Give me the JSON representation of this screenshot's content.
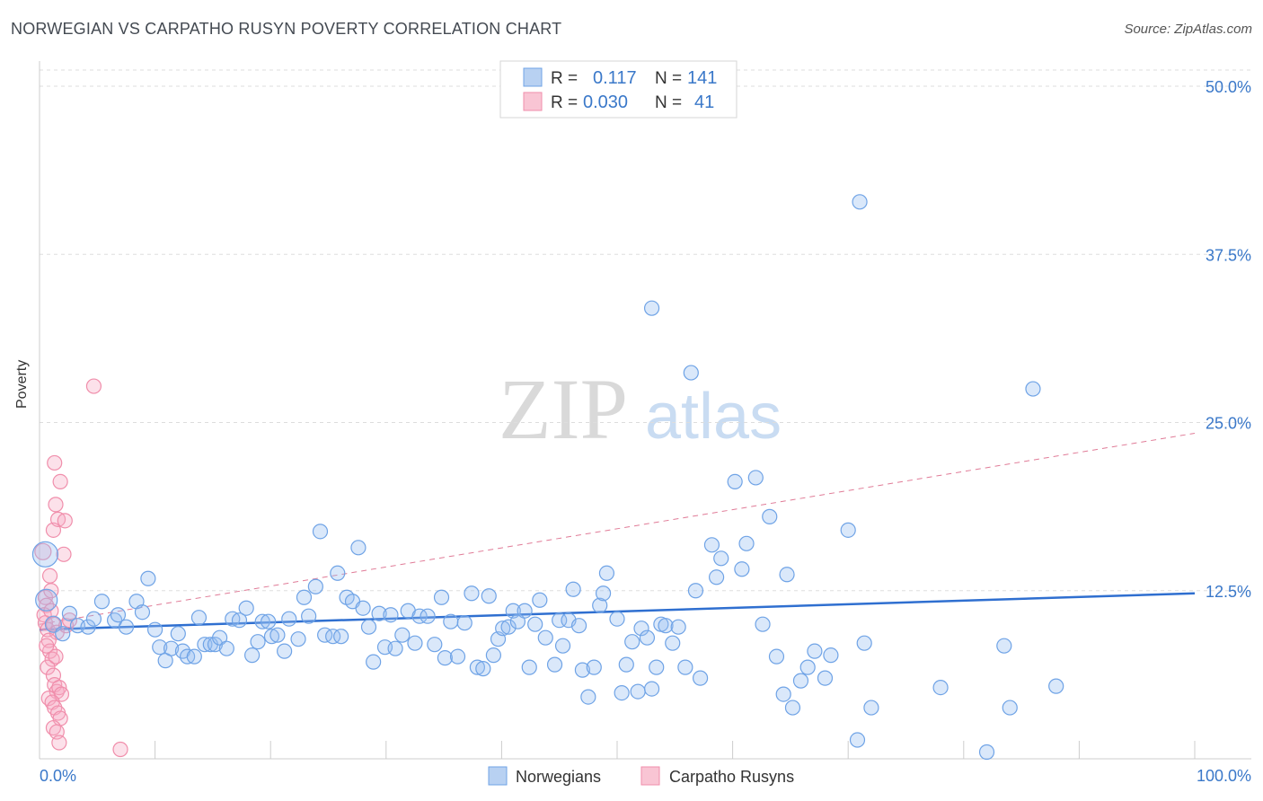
{
  "title": "NORWEGIAN VS CARPATHO RUSYN POVERTY CORRELATION CHART",
  "source": "Source: ZipAtlas.com",
  "watermark": {
    "zip": "ZIP",
    "atlas": "atlas"
  },
  "colors": {
    "blue": "#6fa3e6",
    "blue_line": "#2f6fd0",
    "pink": "#f08eab",
    "pink_line": "#e07b97",
    "axis_text": "#3a78c9",
    "grid": "#d8d8d8"
  },
  "legend": {
    "r_label": "R =",
    "n_label": "N =",
    "rows": [
      {
        "name": "Norwegians",
        "r": "0.117",
        "n": "141"
      },
      {
        "name": "Carpatho Rusyns",
        "r": "0.030",
        "n": "41"
      }
    ]
  },
  "chart_data": {
    "type": "scatter",
    "title": "NORWEGIAN VS CARPATHO RUSYN POVERTY CORRELATION CHART",
    "xlabel": "",
    "ylabel": "Poverty",
    "xlim": [
      0,
      100
    ],
    "ylim": [
      0,
      50
    ],
    "x_tick_labels": [
      "0.0%",
      "100.0%"
    ],
    "y_ticks": [
      12.5,
      25.0,
      37.5,
      50.0
    ],
    "y_tick_labels": [
      "12.5%",
      "25.0%",
      "37.5%",
      "50.0%"
    ],
    "series": [
      {
        "name": "Norwegians",
        "color": "#6fa3e6",
        "trend": {
          "x": [
            0,
            100
          ],
          "y": [
            9.6,
            12.3
          ],
          "style": "solid"
        },
        "points": [
          [
            0.5,
            15.2,
            14
          ],
          [
            0.6,
            11.8,
            12
          ],
          [
            1.2,
            10.0,
            9
          ],
          [
            2.0,
            9.3,
            8
          ],
          [
            2.6,
            10.8,
            8
          ],
          [
            3.3,
            9.9,
            8
          ],
          [
            4.2,
            9.8,
            8
          ],
          [
            4.7,
            10.4,
            8
          ],
          [
            5.4,
            11.7,
            8
          ],
          [
            6.5,
            10.3,
            8
          ],
          [
            6.8,
            10.7,
            8
          ],
          [
            7.5,
            9.8,
            8
          ],
          [
            8.4,
            11.7,
            8
          ],
          [
            8.9,
            10.9,
            8
          ],
          [
            9.4,
            13.4,
            8
          ],
          [
            10.0,
            9.6,
            8
          ],
          [
            10.4,
            8.3,
            8
          ],
          [
            10.9,
            7.3,
            8
          ],
          [
            11.4,
            8.2,
            8
          ],
          [
            12.0,
            9.3,
            8
          ],
          [
            12.4,
            8.0,
            8
          ],
          [
            12.8,
            7.6,
            8
          ],
          [
            13.4,
            7.6,
            8
          ],
          [
            13.8,
            10.5,
            8
          ],
          [
            14.3,
            8.5,
            8
          ],
          [
            14.8,
            8.5,
            8
          ],
          [
            15.2,
            8.5,
            8
          ],
          [
            15.6,
            9.0,
            8
          ],
          [
            16.2,
            8.2,
            8
          ],
          [
            16.7,
            10.4,
            8
          ],
          [
            17.3,
            10.3,
            8
          ],
          [
            17.9,
            11.2,
            8
          ],
          [
            18.4,
            7.7,
            8
          ],
          [
            18.9,
            8.7,
            8
          ],
          [
            19.3,
            10.2,
            8
          ],
          [
            19.8,
            10.2,
            8
          ],
          [
            20.1,
            9.1,
            8
          ],
          [
            20.6,
            9.2,
            8
          ],
          [
            21.2,
            8.0,
            8
          ],
          [
            21.6,
            10.4,
            8
          ],
          [
            22.4,
            8.9,
            8
          ],
          [
            22.9,
            12.0,
            8
          ],
          [
            23.3,
            10.6,
            8
          ],
          [
            23.9,
            12.8,
            8
          ],
          [
            24.3,
            16.9,
            8
          ],
          [
            24.7,
            9.2,
            8
          ],
          [
            25.4,
            9.1,
            8
          ],
          [
            25.8,
            13.8,
            8
          ],
          [
            26.1,
            9.1,
            8
          ],
          [
            26.6,
            12.0,
            8
          ],
          [
            27.1,
            11.7,
            8
          ],
          [
            27.6,
            15.7,
            8
          ],
          [
            28.0,
            11.2,
            8
          ],
          [
            28.5,
            9.8,
            8
          ],
          [
            28.9,
            7.2,
            8
          ],
          [
            29.4,
            10.8,
            8
          ],
          [
            29.9,
            8.3,
            8
          ],
          [
            30.4,
            10.7,
            8
          ],
          [
            30.8,
            8.2,
            8
          ],
          [
            31.4,
            9.2,
            8
          ],
          [
            31.9,
            11.0,
            8
          ],
          [
            32.5,
            8.6,
            8
          ],
          [
            32.9,
            10.6,
            8
          ],
          [
            33.6,
            10.6,
            8
          ],
          [
            34.2,
            8.5,
            8
          ],
          [
            34.8,
            12.0,
            8
          ],
          [
            35.1,
            7.5,
            8
          ],
          [
            35.6,
            10.2,
            8
          ],
          [
            36.2,
            7.6,
            8
          ],
          [
            36.8,
            10.1,
            8
          ],
          [
            37.4,
            12.3,
            8
          ],
          [
            37.9,
            6.8,
            8
          ],
          [
            38.4,
            6.7,
            8
          ],
          [
            38.9,
            12.1,
            8
          ],
          [
            39.3,
            7.7,
            8
          ],
          [
            39.7,
            8.9,
            8
          ],
          [
            40.1,
            9.7,
            8
          ],
          [
            40.6,
            9.8,
            8
          ],
          [
            41.0,
            11.0,
            8
          ],
          [
            41.4,
            10.2,
            8
          ],
          [
            42.0,
            11.0,
            8
          ],
          [
            42.4,
            6.8,
            8
          ],
          [
            42.9,
            10.0,
            8
          ],
          [
            43.3,
            11.8,
            8
          ],
          [
            43.8,
            9.0,
            8
          ],
          [
            44.6,
            7.0,
            8
          ],
          [
            45.0,
            10.3,
            8
          ],
          [
            45.3,
            8.4,
            8
          ],
          [
            45.8,
            10.3,
            8
          ],
          [
            46.2,
            12.6,
            8
          ],
          [
            46.7,
            9.9,
            8
          ],
          [
            47.0,
            6.6,
            8
          ],
          [
            47.5,
            4.6,
            8
          ],
          [
            48.0,
            6.8,
            8
          ],
          [
            48.5,
            11.4,
            8
          ],
          [
            48.8,
            12.3,
            8
          ],
          [
            49.1,
            13.8,
            8
          ],
          [
            50.0,
            10.4,
            8
          ],
          [
            50.4,
            4.9,
            8
          ],
          [
            50.8,
            7.0,
            8
          ],
          [
            51.3,
            8.7,
            8
          ],
          [
            51.8,
            5.0,
            8
          ],
          [
            52.1,
            9.7,
            8
          ],
          [
            52.6,
            9.0,
            8
          ],
          [
            53.0,
            5.2,
            8
          ],
          [
            53.4,
            6.8,
            8
          ],
          [
            53.8,
            10.0,
            8
          ],
          [
            54.2,
            9.9,
            8
          ],
          [
            54.8,
            8.6,
            8
          ],
          [
            55.3,
            9.8,
            8
          ],
          [
            55.9,
            6.8,
            8
          ],
          [
            56.4,
            28.7,
            8
          ],
          [
            56.8,
            12.5,
            8
          ],
          [
            57.2,
            6.0,
            8
          ],
          [
            58.2,
            15.9,
            8
          ],
          [
            58.6,
            13.5,
            8
          ],
          [
            59.0,
            14.9,
            8
          ],
          [
            60.2,
            20.6,
            8
          ],
          [
            60.8,
            14.1,
            8
          ],
          [
            61.2,
            16.0,
            8
          ],
          [
            62.0,
            20.9,
            8
          ],
          [
            62.6,
            10.0,
            8
          ],
          [
            63.2,
            18.0,
            8
          ],
          [
            63.8,
            7.6,
            8
          ],
          [
            64.4,
            4.8,
            8
          ],
          [
            64.7,
            13.7,
            8
          ],
          [
            65.2,
            3.8,
            8
          ],
          [
            65.9,
            5.8,
            8
          ],
          [
            66.5,
            6.8,
            8
          ],
          [
            67.1,
            8.0,
            8
          ],
          [
            68.0,
            6.0,
            8
          ],
          [
            68.5,
            7.7,
            8
          ],
          [
            70.0,
            17.0,
            8
          ],
          [
            70.8,
            1.4,
            8
          ],
          [
            71.4,
            8.6,
            8
          ],
          [
            71.0,
            41.4,
            8
          ],
          [
            78.0,
            5.3,
            8
          ],
          [
            82.0,
            0.5,
            8
          ],
          [
            83.5,
            8.4,
            8
          ],
          [
            86.0,
            27.5,
            8
          ],
          [
            88.0,
            5.4,
            8
          ],
          [
            84.0,
            3.8,
            8
          ],
          [
            53.0,
            33.5,
            8
          ],
          [
            72.0,
            3.8,
            8
          ]
        ]
      },
      {
        "name": "Carpatho Rusyns",
        "color": "#f08eab",
        "trend": {
          "x": [
            0,
            100
          ],
          "y": [
            10.0,
            24.2
          ],
          "style": "dashed"
        },
        "points": [
          [
            0.3,
            15.4,
            9
          ],
          [
            0.5,
            12.0,
            8
          ],
          [
            0.6,
            11.4,
            8
          ],
          [
            0.4,
            10.7,
            8
          ],
          [
            0.5,
            10.1,
            8
          ],
          [
            0.7,
            9.6,
            8
          ],
          [
            0.9,
            13.6,
            8
          ],
          [
            1.0,
            12.5,
            8
          ],
          [
            1.2,
            17.0,
            8
          ],
          [
            1.4,
            18.9,
            8
          ],
          [
            1.6,
            17.8,
            8
          ],
          [
            1.8,
            20.6,
            8
          ],
          [
            2.1,
            15.2,
            8
          ],
          [
            1.3,
            22.0,
            8
          ],
          [
            2.2,
            17.7,
            8
          ],
          [
            1.0,
            11.0,
            8
          ],
          [
            1.2,
            10.0,
            8
          ],
          [
            1.5,
            9.4,
            8
          ],
          [
            0.8,
            8.8,
            8
          ],
          [
            0.9,
            8.0,
            8
          ],
          [
            1.1,
            7.4,
            8
          ],
          [
            0.7,
            6.8,
            8
          ],
          [
            1.2,
            6.2,
            8
          ],
          [
            1.3,
            5.5,
            8
          ],
          [
            1.5,
            5.0,
            8
          ],
          [
            1.7,
            5.3,
            8
          ],
          [
            1.9,
            4.8,
            8
          ],
          [
            0.8,
            4.5,
            8
          ],
          [
            1.1,
            4.2,
            8
          ],
          [
            1.3,
            3.8,
            8
          ],
          [
            1.6,
            3.4,
            8
          ],
          [
            1.8,
            3.0,
            8
          ],
          [
            1.2,
            2.3,
            8
          ],
          [
            1.5,
            2.0,
            8
          ],
          [
            1.7,
            1.2,
            8
          ],
          [
            7.0,
            0.7,
            8
          ],
          [
            4.7,
            27.7,
            8
          ],
          [
            2.3,
            9.9,
            8
          ],
          [
            2.6,
            10.3,
            8
          ],
          [
            0.6,
            8.4,
            8
          ],
          [
            1.4,
            7.6,
            8
          ]
        ]
      }
    ]
  }
}
